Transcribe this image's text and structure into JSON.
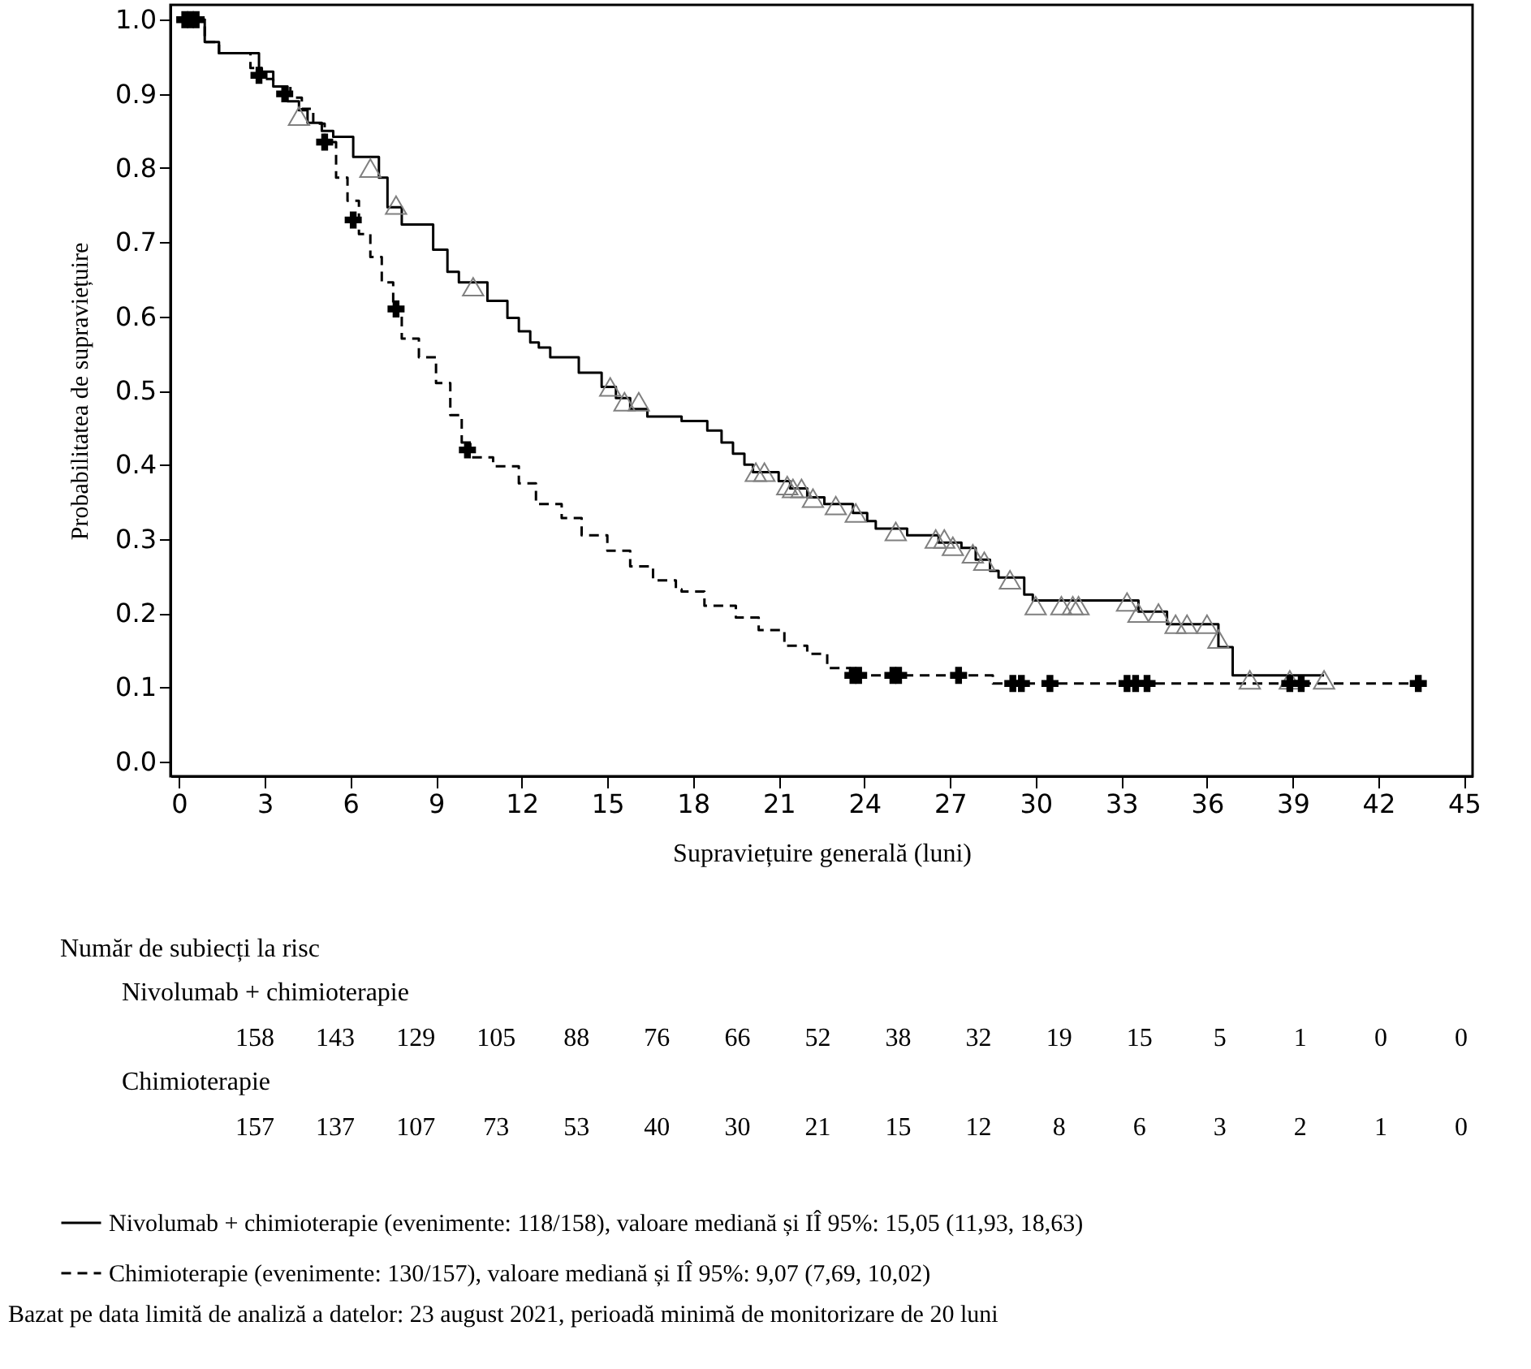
{
  "chart_data": {
    "type": "step",
    "xlabel": "Supraviețuire generală (luni)",
    "ylabel": "Probabilitatea de supraviețuire",
    "xlim": [
      -0.3,
      45.3
    ],
    "ylim": [
      -0.02,
      1.02
    ],
    "xticks": [
      0,
      3,
      6,
      9,
      12,
      15,
      18,
      21,
      24,
      27,
      30,
      33,
      36,
      39,
      42,
      45
    ],
    "yticks": [
      {
        "value": 0,
        "label": "0.0"
      },
      0.1,
      0.2,
      0.3,
      0.4,
      0.5,
      0.6,
      0.7,
      0.8,
      0.9,
      {
        "value": 1,
        "label": "1.0"
      }
    ],
    "legend": "bottom",
    "series": [
      {
        "name": "Nivolumab + chimioterapie (evenimente: 118/158), valoare mediană și IÎ 95%: 15,05 (11,93, 18,63)",
        "color": "#000000",
        "line_style": "solid",
        "x": [
          0,
          0.9,
          1.4,
          2.8,
          3.3,
          3.8,
          4.2,
          4.5,
          5.0,
          5.4,
          6.1,
          7.0,
          7.3,
          7.8,
          8.9,
          9.4,
          9.8,
          10.8,
          11.5,
          11.9,
          12.3,
          12.6,
          13.0,
          14.0,
          14.8,
          15.3,
          15.8,
          16.4,
          17.6,
          18.5,
          19.0,
          19.4,
          19.8,
          20.1,
          21.0,
          21.4,
          22.0,
          22.6,
          23.6,
          24.1,
          24.4,
          25.5,
          26.6,
          27.4,
          27.9,
          28.4,
          28.7,
          29.6,
          29.9,
          33.6,
          34.6,
          36.4,
          36.9,
          40.1
        ],
        "values": [
          1.0,
          0.97,
          0.955,
          0.93,
          0.91,
          0.89,
          0.878,
          0.861,
          0.85,
          0.842,
          0.815,
          0.787,
          0.747,
          0.724,
          0.69,
          0.66,
          0.646,
          0.621,
          0.598,
          0.58,
          0.565,
          0.558,
          0.545,
          0.524,
          0.505,
          0.49,
          0.475,
          0.465,
          0.459,
          0.446,
          0.43,
          0.415,
          0.4,
          0.39,
          0.378,
          0.368,
          0.356,
          0.347,
          0.335,
          0.324,
          0.314,
          0.305,
          0.295,
          0.288,
          0.272,
          0.257,
          0.248,
          0.225,
          0.217,
          0.202,
          0.185,
          0.154,
          0.116,
          0.116
        ]
      },
      {
        "name": "Chimioterapie (evenimente: 130/157), valoare mediană și IÎ 95%: 9,07 (7,69, 10,02)",
        "color": "#000000",
        "line_style": "dashed",
        "x": [
          0,
          0.9,
          1.4,
          2.5,
          2.9,
          3.3,
          3.9,
          4.3,
          4.7,
          5.1,
          5.5,
          5.9,
          6.3,
          6.7,
          7.1,
          7.5,
          7.8,
          8.4,
          9.0,
          9.5,
          9.9,
          10.2,
          11.0,
          11.9,
          12.5,
          13.4,
          14.1,
          15.0,
          15.8,
          16.6,
          17.4,
          17.6,
          18.4,
          19.5,
          20.3,
          21.2,
          22.0,
          22.7,
          23.5,
          28.5,
          43.4
        ],
        "values": [
          1.0,
          0.97,
          0.955,
          0.935,
          0.92,
          0.91,
          0.895,
          0.88,
          0.86,
          0.835,
          0.787,
          0.756,
          0.711,
          0.68,
          0.646,
          0.61,
          0.57,
          0.545,
          0.51,
          0.467,
          0.43,
          0.41,
          0.398,
          0.375,
          0.347,
          0.328,
          0.305,
          0.284,
          0.263,
          0.244,
          0.232,
          0.229,
          0.21,
          0.194,
          0.177,
          0.156,
          0.145,
          0.126,
          0.116,
          0.105,
          0.105
        ]
      },
      {
        "type": "scatter",
        "marker": "triangle",
        "color": "#808080",
        "x": [
          4.2,
          6.7,
          7.6,
          10.3,
          15.1,
          15.6,
          16.1,
          20.2,
          20.5,
          21.3,
          21.5,
          21.8,
          22.2,
          23.0,
          23.7,
          25.1,
          26.5,
          26.8,
          27.1,
          27.8,
          28.2,
          29.1,
          30.0,
          30.9,
          31.3,
          31.5,
          33.2,
          33.6,
          34.3,
          34.9,
          35.3,
          36.0,
          36.4,
          37.5,
          38.9,
          40.1
        ],
        "values": [
          0.87,
          0.8,
          0.75,
          0.64,
          0.505,
          0.485,
          0.485,
          0.39,
          0.39,
          0.372,
          0.368,
          0.368,
          0.355,
          0.345,
          0.335,
          0.31,
          0.3,
          0.3,
          0.29,
          0.28,
          0.27,
          0.245,
          0.21,
          0.21,
          0.21,
          0.21,
          0.215,
          0.2,
          0.2,
          0.185,
          0.185,
          0.185,
          0.165,
          0.11,
          0.11,
          0.11
        ]
      },
      {
        "type": "scatter",
        "marker": "cross",
        "color": "#000000",
        "x": [
          0.2,
          0.4,
          0.6,
          2.8,
          3.7,
          5.1,
          6.1,
          7.6,
          10.1,
          23.6,
          23.8,
          25.0,
          25.2,
          27.3,
          29.2,
          29.5,
          30.5,
          33.2,
          33.5,
          33.9,
          38.9,
          39.3,
          43.4
        ],
        "values": [
          1.0,
          1.0,
          1.0,
          0.925,
          0.9,
          0.835,
          0.73,
          0.61,
          0.42,
          0.116,
          0.116,
          0.116,
          0.116,
          0.116,
          0.105,
          0.105,
          0.105,
          0.105,
          0.105,
          0.105,
          0.105,
          0.105,
          0.105
        ]
      }
    ],
    "annotations": [
      "Număr de subiecți la risc",
      "Nivolumab + chimioterapie",
      "158 143 129 105 88 76 66 52 38 32 19 15 5 1 0 0",
      "Chimioterapie",
      "157 137 107 73 53 40 30 21 15 12 8 6 3 2 1 0",
      "Bazat pe data limită de analiză a datelor: 23 august 2021, perioadă minimă de monitorizare de 20 luni"
    ]
  }
}
